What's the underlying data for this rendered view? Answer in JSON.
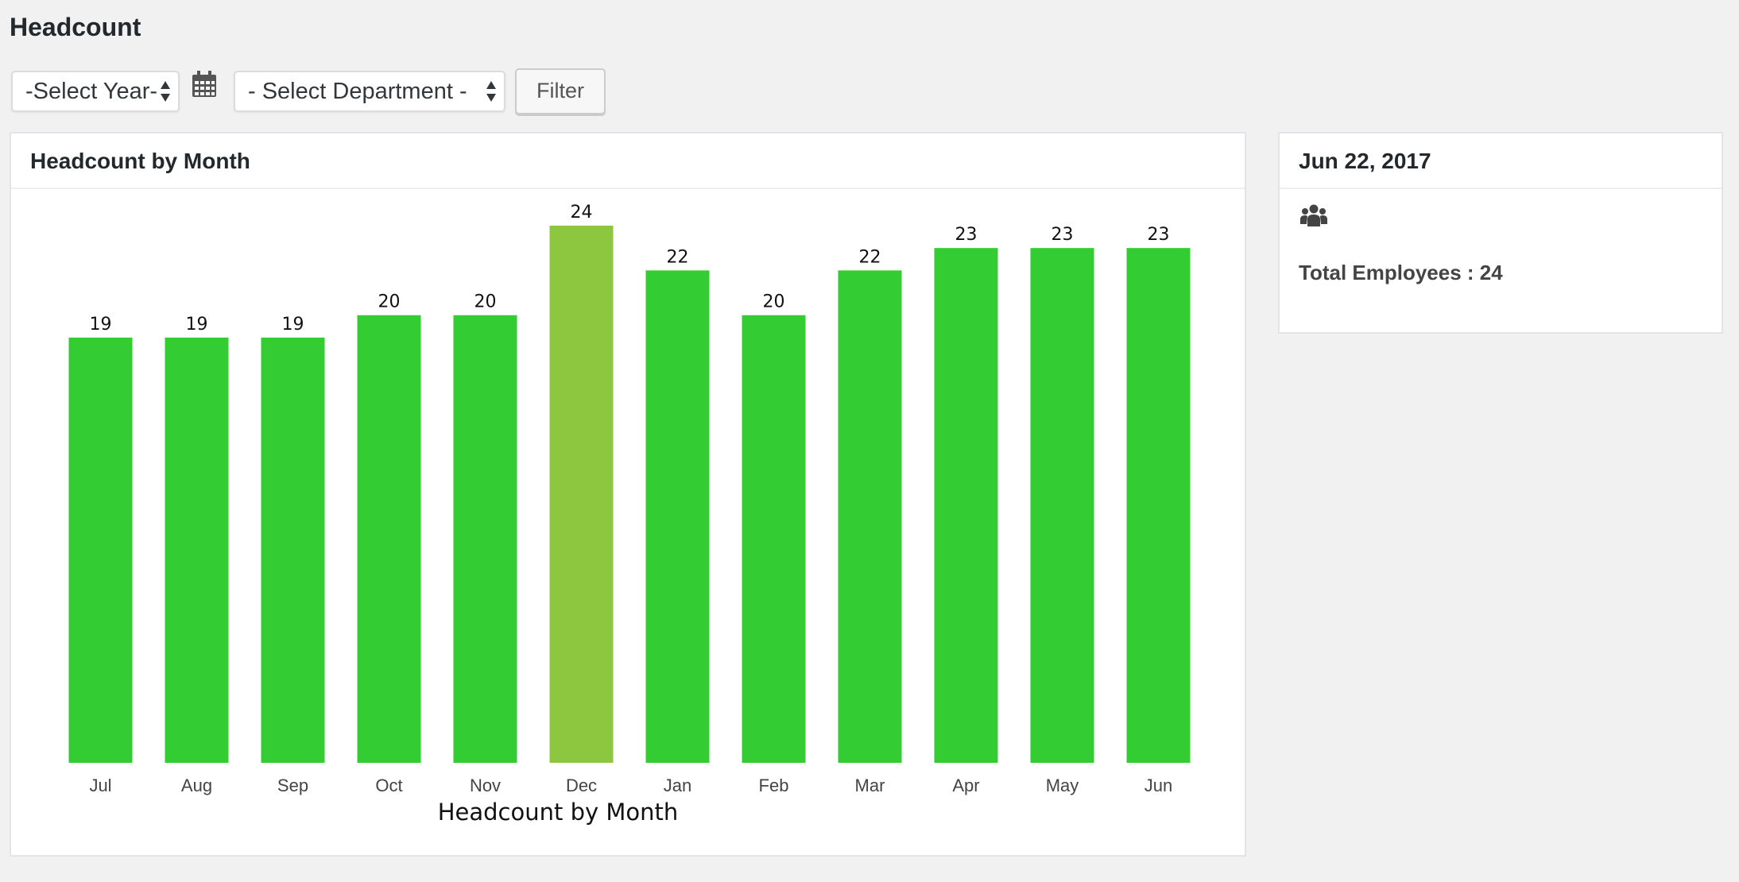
{
  "page": {
    "title": "Headcount"
  },
  "filters": {
    "year_select": "-Select Year-",
    "department_select": "- Select Department -",
    "filter_button": "Filter"
  },
  "chart_panel": {
    "title": "Headcount by Month"
  },
  "summary_panel": {
    "date": "Jun 22, 2017",
    "total_label": "Total Employees : 24",
    "icon": "group-icon"
  },
  "colors": {
    "bar": "#33cc33",
    "highlight_bar": "#8dc63f"
  },
  "chart_data": {
    "type": "bar",
    "categories": [
      "Jul",
      "Aug",
      "Sep",
      "Oct",
      "Nov",
      "Dec",
      "Jan",
      "Feb",
      "Mar",
      "Apr",
      "May",
      "Jun"
    ],
    "values": [
      19,
      19,
      19,
      20,
      20,
      24,
      22,
      20,
      22,
      23,
      23,
      23
    ],
    "highlighted": "Dec",
    "xlabel": "Headcount by Month",
    "ylabel": "",
    "ylim": [
      0,
      24
    ],
    "data_labels": true,
    "grid": false
  }
}
